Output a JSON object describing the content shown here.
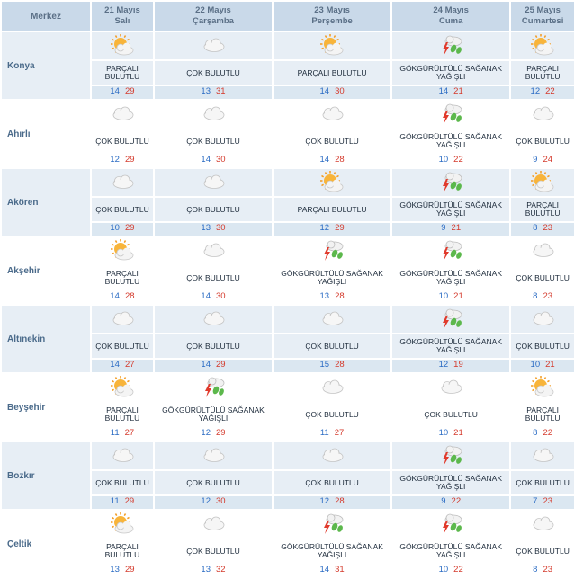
{
  "header": {
    "city_col": "Merkez",
    "days": [
      {
        "date": "21 Mayıs",
        "weekday": "Salı"
      },
      {
        "date": "22 Mayıs",
        "weekday": "Çarşamba"
      },
      {
        "date": "23 Mayıs",
        "weekday": "Perşembe"
      },
      {
        "date": "24 Mayıs",
        "weekday": "Cuma"
      },
      {
        "date": "25 Mayıs",
        "weekday": "Cumartesi"
      }
    ]
  },
  "rows": [
    {
      "city": "Konya",
      "days": [
        {
          "icon": "partly-cloudy-icon",
          "desc": "PARÇALI BULUTLU",
          "min": "14",
          "max": "29"
        },
        {
          "icon": "cloudy-icon",
          "desc": "ÇOK BULUTLU",
          "min": "13",
          "max": "31"
        },
        {
          "icon": "partly-cloudy-icon",
          "desc": "PARÇALI BULUTLU",
          "min": "14",
          "max": "30"
        },
        {
          "icon": "thunderstorm-icon",
          "desc": "GÖKGÜRÜLTÜLÜ SAĞANAK YAĞIŞLI",
          "min": "14",
          "max": "21"
        },
        {
          "icon": "partly-cloudy-icon",
          "desc": "PARÇALI BULUTLU",
          "min": "12",
          "max": "22"
        }
      ]
    },
    {
      "city": "Ahırlı",
      "days": [
        {
          "icon": "cloudy-icon",
          "desc": "ÇOK BULUTLU",
          "min": "12",
          "max": "29"
        },
        {
          "icon": "cloudy-icon",
          "desc": "ÇOK BULUTLU",
          "min": "14",
          "max": "30"
        },
        {
          "icon": "cloudy-icon",
          "desc": "ÇOK BULUTLU",
          "min": "14",
          "max": "28"
        },
        {
          "icon": "thunderstorm-icon",
          "desc": "GÖKGÜRÜLTÜLÜ SAĞANAK YAĞIŞLI",
          "min": "10",
          "max": "22"
        },
        {
          "icon": "cloudy-icon",
          "desc": "ÇOK BULUTLU",
          "min": "9",
          "max": "24"
        }
      ]
    },
    {
      "city": "Akören",
      "days": [
        {
          "icon": "cloudy-icon",
          "desc": "ÇOK BULUTLU",
          "min": "10",
          "max": "29"
        },
        {
          "icon": "cloudy-icon",
          "desc": "ÇOK BULUTLU",
          "min": "13",
          "max": "30"
        },
        {
          "icon": "partly-cloudy-icon",
          "desc": "PARÇALI BULUTLU",
          "min": "12",
          "max": "29"
        },
        {
          "icon": "thunderstorm-icon",
          "desc": "GÖKGÜRÜLTÜLÜ SAĞANAK YAĞIŞLI",
          "min": "9",
          "max": "21"
        },
        {
          "icon": "partly-cloudy-icon",
          "desc": "PARÇALI BULUTLU",
          "min": "8",
          "max": "23"
        }
      ]
    },
    {
      "city": "Akşehir",
      "days": [
        {
          "icon": "partly-cloudy-icon",
          "desc": "PARÇALI BULUTLU",
          "min": "14",
          "max": "28"
        },
        {
          "icon": "cloudy-icon",
          "desc": "ÇOK BULUTLU",
          "min": "14",
          "max": "30"
        },
        {
          "icon": "thunderstorm-icon",
          "desc": "GÖKGÜRÜLTÜLÜ SAĞANAK YAĞIŞLI",
          "min": "13",
          "max": "28"
        },
        {
          "icon": "thunderstorm-icon",
          "desc": "GÖKGÜRÜLTÜLÜ SAĞANAK YAĞIŞLI",
          "min": "10",
          "max": "21"
        },
        {
          "icon": "cloudy-icon",
          "desc": "ÇOK BULUTLU",
          "min": "8",
          "max": "23"
        }
      ]
    },
    {
      "city": "Altınekin",
      "days": [
        {
          "icon": "cloudy-icon",
          "desc": "ÇOK BULUTLU",
          "min": "14",
          "max": "27"
        },
        {
          "icon": "cloudy-icon",
          "desc": "ÇOK BULUTLU",
          "min": "14",
          "max": "29"
        },
        {
          "icon": "cloudy-icon",
          "desc": "ÇOK BULUTLU",
          "min": "15",
          "max": "28"
        },
        {
          "icon": "thunderstorm-icon",
          "desc": "GÖKGÜRÜLTÜLÜ SAĞANAK YAĞIŞLI",
          "min": "12",
          "max": "19"
        },
        {
          "icon": "cloudy-icon",
          "desc": "ÇOK BULUTLU",
          "min": "10",
          "max": "21"
        }
      ]
    },
    {
      "city": "Beyşehir",
      "days": [
        {
          "icon": "partly-cloudy-icon",
          "desc": "PARÇALI BULUTLU",
          "min": "11",
          "max": "27"
        },
        {
          "icon": "thunderstorm-icon",
          "desc": "GÖKGÜRÜLTÜLÜ SAĞANAK YAĞIŞLI",
          "min": "12",
          "max": "29"
        },
        {
          "icon": "cloudy-icon",
          "desc": "ÇOK BULUTLU",
          "min": "11",
          "max": "27"
        },
        {
          "icon": "cloudy-icon",
          "desc": "ÇOK BULUTLU",
          "min": "10",
          "max": "21"
        },
        {
          "icon": "partly-cloudy-icon",
          "desc": "PARÇALI BULUTLU",
          "min": "8",
          "max": "22"
        }
      ]
    },
    {
      "city": "Bozkır",
      "days": [
        {
          "icon": "cloudy-icon",
          "desc": "ÇOK BULUTLU",
          "min": "11",
          "max": "29"
        },
        {
          "icon": "cloudy-icon",
          "desc": "ÇOK BULUTLU",
          "min": "12",
          "max": "30"
        },
        {
          "icon": "cloudy-icon",
          "desc": "ÇOK BULUTLU",
          "min": "12",
          "max": "28"
        },
        {
          "icon": "thunderstorm-icon",
          "desc": "GÖKGÜRÜLTÜLÜ SAĞANAK YAĞIŞLI",
          "min": "9",
          "max": "22"
        },
        {
          "icon": "cloudy-icon",
          "desc": "ÇOK BULUTLU",
          "min": "7",
          "max": "23"
        }
      ]
    },
    {
      "city": "Çeltik",
      "days": [
        {
          "icon": "partly-cloudy-icon",
          "desc": "PARÇALI BULUTLU",
          "min": "13",
          "max": "29"
        },
        {
          "icon": "cloudy-icon",
          "desc": "ÇOK BULUTLU",
          "min": "13",
          "max": "32"
        },
        {
          "icon": "thunderstorm-icon",
          "desc": "GÖKGÜRÜLTÜLÜ SAĞANAK YAĞIŞLI",
          "min": "14",
          "max": "31"
        },
        {
          "icon": "thunderstorm-icon",
          "desc": "GÖKGÜRÜLTÜLÜ SAĞANAK YAĞIŞLI",
          "min": "10",
          "max": "22"
        },
        {
          "icon": "cloudy-icon",
          "desc": "ÇOK BULUTLU",
          "min": "8",
          "max": "23"
        }
      ]
    }
  ],
  "colors": {
    "header_bg": "#c9d9e9",
    "shaded_bg": "#e7eef5",
    "min_temp": "#2b6cc4",
    "max_temp": "#d43a2c"
  }
}
